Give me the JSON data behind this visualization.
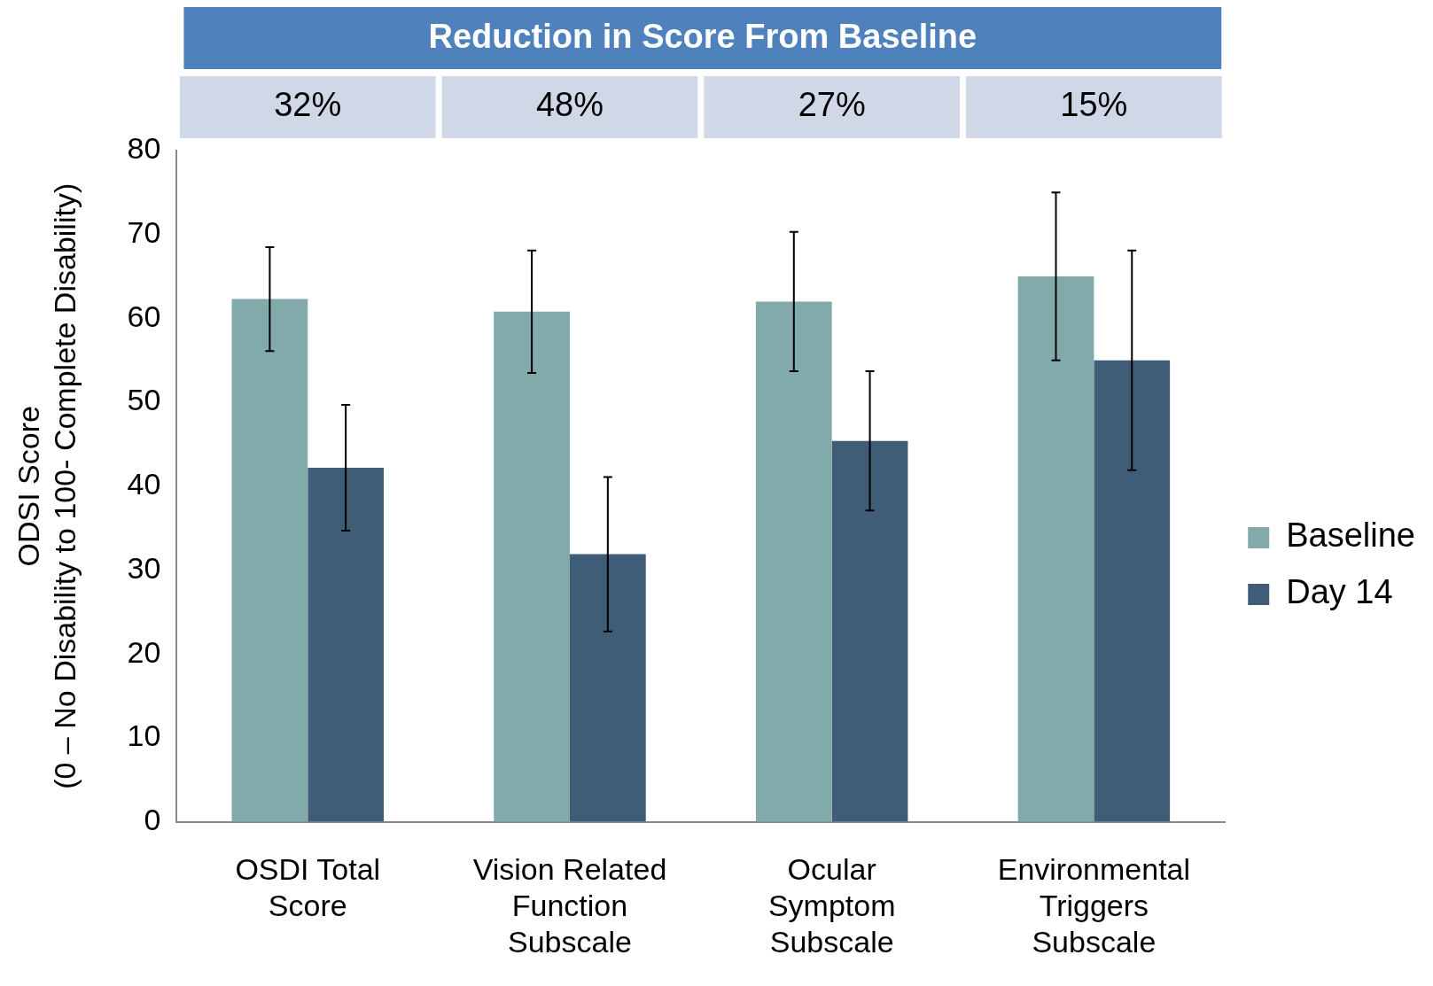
{
  "chart_data": {
    "type": "bar",
    "title": "Reduction in Score From Baseline",
    "ylabel": "ODSI Score (0 – No Disability to 100- Complete Disability)",
    "categories": [
      "OSDI Total Score",
      "Vision Related Function Subscale",
      "Ocular Symptom Subscale",
      "Environmental Triggers Subscale"
    ],
    "series": [
      {
        "name": "Baseline",
        "color": "#82aaab",
        "values": [
          62.3,
          60.8,
          62.0,
          65.0
        ],
        "errors": [
          6.2,
          7.3,
          8.3,
          10.0
        ]
      },
      {
        "name": "Day 14",
        "color": "#405d78",
        "values": [
          42.2,
          31.9,
          45.4,
          55.0
        ],
        "errors": [
          7.5,
          9.2,
          8.3,
          13.1
        ]
      }
    ],
    "annotations": [
      "32%",
      "48%",
      "27%",
      "15%"
    ],
    "ylim": [
      0,
      80
    ],
    "yticks": [
      0,
      10,
      20,
      30,
      40,
      50,
      60,
      70,
      80
    ],
    "grid": false,
    "legend": "right"
  }
}
